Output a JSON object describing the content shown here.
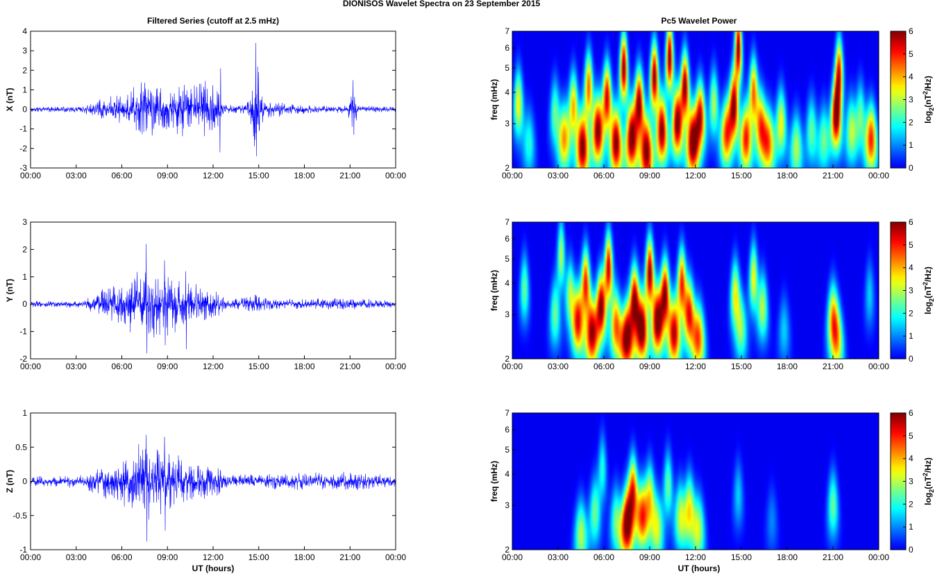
{
  "figure": {
    "title": "DIONISOS Wavelet Spectra on 23 September 2015",
    "left_title": "Filtered Series (cutoff at 2.5 mHz)",
    "right_title": "Pc5 Wavelet Power",
    "xlabel": "UT (hours)"
  },
  "time_ticks": [
    "00:00",
    "03:00",
    "06:00",
    "09:00",
    "12:00",
    "15:00",
    "18:00",
    "21:00",
    "00:00"
  ],
  "colorbar": {
    "label_prefix": "log",
    "label_sub": "2",
    "label_mid": "(nT",
    "label_sup": "2",
    "label_suffix": "/Hz)",
    "ticks": [
      "0",
      "1",
      "2",
      "3",
      "4",
      "5",
      "6"
    ],
    "range": [
      0,
      6
    ],
    "colormap": "jet"
  },
  "chart_data": [
    {
      "type": "line",
      "component": "X",
      "ylabel": "X (nT)",
      "ylim": [
        -3,
        4
      ],
      "yticks": [
        "4",
        "3",
        "2",
        "1",
        "0",
        "-1",
        "-2",
        "-3"
      ],
      "x_range_hours": [
        0,
        24
      ],
      "line_color": "#0000ff",
      "envelope": [
        {
          "t": 0.0,
          "amp": 0.15
        },
        {
          "t": 2.0,
          "amp": 0.15
        },
        {
          "t": 3.5,
          "amp": 0.2
        },
        {
          "t": 4.5,
          "amp": 0.6
        },
        {
          "t": 6.0,
          "amp": 0.8
        },
        {
          "t": 7.5,
          "amp": 1.5
        },
        {
          "t": 9.0,
          "amp": 1.1
        },
        {
          "t": 10.3,
          "amp": 1.6
        },
        {
          "t": 12.0,
          "amp": 1.6
        },
        {
          "t": 12.8,
          "amp": 0.25
        },
        {
          "t": 14.2,
          "amp": 0.3
        },
        {
          "t": 14.8,
          "amp": 2.9
        },
        {
          "t": 15.3,
          "amp": 0.5
        },
        {
          "t": 18.0,
          "amp": 0.25
        },
        {
          "t": 20.8,
          "amp": 0.2
        },
        {
          "t": 21.2,
          "amp": 1.2
        },
        {
          "t": 21.6,
          "amp": 0.2
        },
        {
          "t": 24.0,
          "amp": 0.15
        }
      ],
      "peaks": [
        {
          "t": 14.8,
          "value": 3.4
        },
        {
          "t": 14.85,
          "value": -2.4
        },
        {
          "t": 12.5,
          "value": 2.1
        },
        {
          "t": 12.45,
          "value": -2.2
        },
        {
          "t": 21.2,
          "value": 1.5
        },
        {
          "t": 21.25,
          "value": -1.3
        }
      ]
    },
    {
      "type": "line",
      "component": "Y",
      "ylabel": "Y (nT)",
      "ylim": [
        -2,
        3
      ],
      "yticks": [
        "3",
        "2",
        "1",
        "0",
        "-1",
        "-2"
      ],
      "x_range_hours": [
        0,
        24
      ],
      "line_color": "#0000ff",
      "envelope": [
        {
          "t": 0.0,
          "amp": 0.12
        },
        {
          "t": 3.5,
          "amp": 0.15
        },
        {
          "t": 4.5,
          "amp": 0.5
        },
        {
          "t": 6.0,
          "amp": 0.9
        },
        {
          "t": 7.5,
          "amp": 1.6
        },
        {
          "t": 8.8,
          "amp": 1.3
        },
        {
          "t": 10.0,
          "amp": 1.0
        },
        {
          "t": 12.5,
          "amp": 0.4
        },
        {
          "t": 13.0,
          "amp": 0.15
        },
        {
          "t": 14.8,
          "amp": 0.35
        },
        {
          "t": 16.0,
          "amp": 0.2
        },
        {
          "t": 21.0,
          "amp": 0.25
        },
        {
          "t": 24.0,
          "amp": 0.12
        }
      ],
      "peaks": [
        {
          "t": 7.6,
          "value": 2.2
        },
        {
          "t": 7.65,
          "value": -1.8
        },
        {
          "t": 8.8,
          "value": 1.6
        },
        {
          "t": 8.85,
          "value": -1.5
        },
        {
          "t": 10.2,
          "value": 1.2
        },
        {
          "t": 10.25,
          "value": -1.65
        }
      ]
    },
    {
      "type": "line",
      "component": "Z",
      "ylabel": "Z (nT)",
      "ylim": [
        -1,
        1
      ],
      "yticks": [
        "1",
        "0.5",
        "0",
        "-0.5",
        "-1"
      ],
      "x_range_hours": [
        0,
        24
      ],
      "line_color": "#0000ff",
      "envelope": [
        {
          "t": 0.0,
          "amp": 0.08
        },
        {
          "t": 3.5,
          "amp": 0.1
        },
        {
          "t": 4.5,
          "amp": 0.25
        },
        {
          "t": 6.0,
          "amp": 0.35
        },
        {
          "t": 7.6,
          "amp": 0.65
        },
        {
          "t": 9.0,
          "amp": 0.5
        },
        {
          "t": 10.5,
          "amp": 0.3
        },
        {
          "t": 12.5,
          "amp": 0.25
        },
        {
          "t": 13.0,
          "amp": 0.1
        },
        {
          "t": 16.0,
          "amp": 0.12
        },
        {
          "t": 21.0,
          "amp": 0.15
        },
        {
          "t": 24.0,
          "amp": 0.08
        }
      ],
      "peaks": [
        {
          "t": 7.6,
          "value": 0.68
        },
        {
          "t": 7.65,
          "value": -0.88
        },
        {
          "t": 8.8,
          "value": 0.65
        },
        {
          "t": 8.85,
          "value": -0.72
        }
      ]
    },
    {
      "type": "heatmap",
      "component": "X",
      "ylabel": "freq (mHz)",
      "yscale": "log",
      "ylim": [
        2,
        7
      ],
      "yticks": [
        "7",
        "6",
        "5",
        "4",
        "3",
        "2"
      ],
      "x_range_hours": [
        0,
        24
      ],
      "bursts": [
        {
          "t": 0.4,
          "f": 3.6,
          "p": 3.5
        },
        {
          "t": 1.1,
          "f": 2.5,
          "p": 2.0
        },
        {
          "t": 2.8,
          "f": 3.3,
          "p": 2.5
        },
        {
          "t": 3.4,
          "f": 2.6,
          "p": 4.0
        },
        {
          "t": 4.0,
          "f": 3.5,
          "p": 4.0
        },
        {
          "t": 4.6,
          "f": 2.4,
          "p": 6.0
        },
        {
          "t": 5.0,
          "f": 4.2,
          "p": 4.5
        },
        {
          "t": 5.6,
          "f": 2.8,
          "p": 6.0
        },
        {
          "t": 6.2,
          "f": 3.8,
          "p": 5.5
        },
        {
          "t": 6.8,
          "f": 2.5,
          "p": 6.0
        },
        {
          "t": 7.3,
          "f": 5.0,
          "p": 6.0
        },
        {
          "t": 7.8,
          "f": 2.6,
          "p": 6.0
        },
        {
          "t": 8.3,
          "f": 3.6,
          "p": 6.0
        },
        {
          "t": 8.8,
          "f": 2.3,
          "p": 6.0
        },
        {
          "t": 9.3,
          "f": 4.6,
          "p": 6.0
        },
        {
          "t": 9.8,
          "f": 2.8,
          "p": 6.0
        },
        {
          "t": 10.3,
          "f": 5.5,
          "p": 6.0
        },
        {
          "t": 10.8,
          "f": 3.0,
          "p": 6.0
        },
        {
          "t": 11.3,
          "f": 4.2,
          "p": 6.0
        },
        {
          "t": 11.8,
          "f": 2.5,
          "p": 6.0
        },
        {
          "t": 12.3,
          "f": 3.2,
          "p": 5.5
        },
        {
          "t": 13.2,
          "f": 3.6,
          "p": 3.0
        },
        {
          "t": 14.0,
          "f": 2.7,
          "p": 4.5
        },
        {
          "t": 14.5,
          "f": 3.5,
          "p": 6.0
        },
        {
          "t": 14.8,
          "f": 6.0,
          "p": 6.0
        },
        {
          "t": 15.3,
          "f": 2.6,
          "p": 5.0
        },
        {
          "t": 15.8,
          "f": 4.0,
          "p": 4.5
        },
        {
          "t": 16.3,
          "f": 2.9,
          "p": 4.5
        },
        {
          "t": 16.8,
          "f": 2.5,
          "p": 4.0
        },
        {
          "t": 17.6,
          "f": 3.0,
          "p": 3.5
        },
        {
          "t": 18.6,
          "f": 2.4,
          "p": 3.0
        },
        {
          "t": 19.6,
          "f": 2.8,
          "p": 2.5
        },
        {
          "t": 20.4,
          "f": 2.6,
          "p": 2.5
        },
        {
          "t": 21.2,
          "f": 3.2,
          "p": 6.0
        },
        {
          "t": 21.4,
          "f": 4.8,
          "p": 5.0
        },
        {
          "t": 22.2,
          "f": 2.8,
          "p": 3.0
        },
        {
          "t": 22.8,
          "f": 3.2,
          "p": 2.5
        },
        {
          "t": 23.5,
          "f": 2.6,
          "p": 5.0
        }
      ]
    },
    {
      "type": "heatmap",
      "component": "Y",
      "ylabel": "freq (mHz)",
      "yscale": "log",
      "ylim": [
        2,
        7
      ],
      "yticks": [
        "7",
        "6",
        "5",
        "4",
        "3",
        "2"
      ],
      "x_range_hours": [
        0,
        24
      ],
      "bursts": [
        {
          "t": 0.8,
          "f": 3.8,
          "p": 2.5
        },
        {
          "t": 2.8,
          "f": 3.0,
          "p": 2.5
        },
        {
          "t": 3.2,
          "f": 5.2,
          "p": 3.0
        },
        {
          "t": 3.8,
          "f": 3.6,
          "p": 3.0
        },
        {
          "t": 4.3,
          "f": 2.8,
          "p": 5.0
        },
        {
          "t": 4.8,
          "f": 4.0,
          "p": 5.0
        },
        {
          "t": 5.2,
          "f": 2.5,
          "p": 5.5
        },
        {
          "t": 5.8,
          "f": 3.2,
          "p": 6.0
        },
        {
          "t": 6.3,
          "f": 4.6,
          "p": 5.5
        },
        {
          "t": 6.8,
          "f": 2.7,
          "p": 4.5
        },
        {
          "t": 7.5,
          "f": 2.4,
          "p": 6.0
        },
        {
          "t": 8.0,
          "f": 3.4,
          "p": 6.0
        },
        {
          "t": 8.5,
          "f": 2.6,
          "p": 6.0
        },
        {
          "t": 9.0,
          "f": 4.4,
          "p": 6.0
        },
        {
          "t": 9.5,
          "f": 2.8,
          "p": 6.0
        },
        {
          "t": 10.0,
          "f": 3.6,
          "p": 6.0
        },
        {
          "t": 10.6,
          "f": 2.5,
          "p": 5.5
        },
        {
          "t": 11.1,
          "f": 4.0,
          "p": 5.0
        },
        {
          "t": 11.6,
          "f": 3.0,
          "p": 5.0
        },
        {
          "t": 12.2,
          "f": 2.4,
          "p": 4.5
        },
        {
          "t": 14.6,
          "f": 3.6,
          "p": 3.5
        },
        {
          "t": 15.0,
          "f": 2.6,
          "p": 2.5
        },
        {
          "t": 15.8,
          "f": 4.2,
          "p": 3.5
        },
        {
          "t": 16.4,
          "f": 3.2,
          "p": 3.0
        },
        {
          "t": 17.8,
          "f": 2.6,
          "p": 1.5
        },
        {
          "t": 21.0,
          "f": 2.9,
          "p": 4.0
        },
        {
          "t": 21.3,
          "f": 2.3,
          "p": 3.0
        },
        {
          "t": 23.4,
          "f": 3.6,
          "p": 1.5
        }
      ]
    },
    {
      "type": "heatmap",
      "component": "Z",
      "ylabel": "freq (mHz)",
      "yscale": "log",
      "ylim": [
        2,
        7
      ],
      "yticks": [
        "7",
        "6",
        "5",
        "4",
        "3",
        "2"
      ],
      "x_range_hours": [
        0,
        24
      ],
      "bursts": [
        {
          "t": 4.5,
          "f": 2.3,
          "p": 3.0
        },
        {
          "t": 5.4,
          "f": 2.8,
          "p": 2.5
        },
        {
          "t": 5.9,
          "f": 4.2,
          "p": 2.0
        },
        {
          "t": 6.8,
          "f": 2.6,
          "p": 2.5
        },
        {
          "t": 7.5,
          "f": 2.5,
          "p": 6.0
        },
        {
          "t": 7.9,
          "f": 3.4,
          "p": 5.0
        },
        {
          "t": 8.5,
          "f": 2.7,
          "p": 4.5
        },
        {
          "t": 9.0,
          "f": 3.2,
          "p": 3.5
        },
        {
          "t": 9.5,
          "f": 2.4,
          "p": 3.0
        },
        {
          "t": 10.2,
          "f": 3.6,
          "p": 2.5
        },
        {
          "t": 11.0,
          "f": 2.7,
          "p": 3.0
        },
        {
          "t": 11.6,
          "f": 2.9,
          "p": 3.5
        },
        {
          "t": 12.2,
          "f": 2.4,
          "p": 3.0
        },
        {
          "t": 14.8,
          "f": 3.3,
          "p": 1.5
        },
        {
          "t": 17.0,
          "f": 2.6,
          "p": 1.0
        },
        {
          "t": 21.0,
          "f": 3.0,
          "p": 2.5
        }
      ]
    }
  ]
}
